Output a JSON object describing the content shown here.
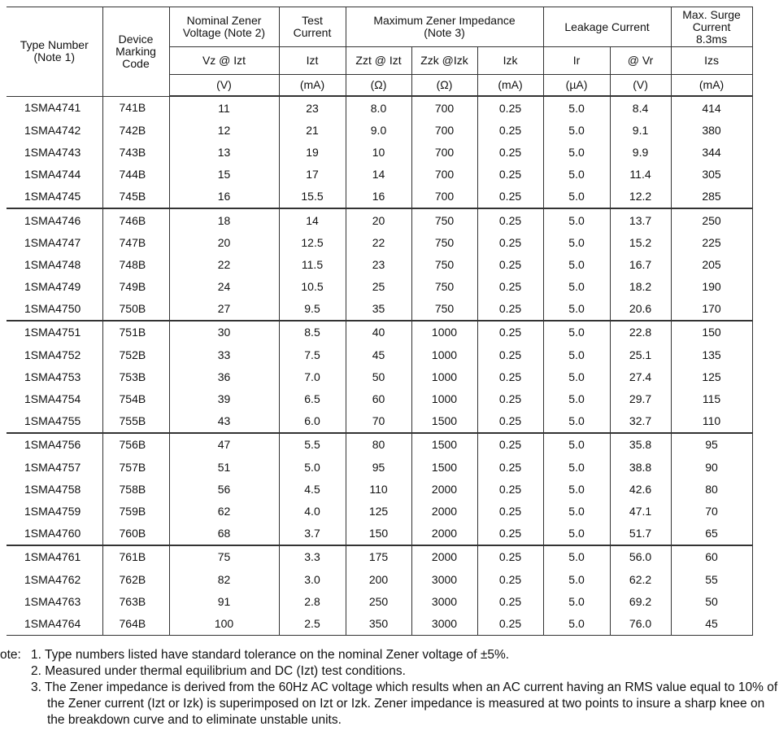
{
  "table": {
    "header": {
      "type_number": "Type Number\n(Note 1)",
      "marking_code": "Device\nMarking\nCode",
      "nominal_voltage": "Nominal Zener\nVoltage (Note 2)",
      "test_current": "Test\nCurrent",
      "max_impedance": "Maximum Zener Impedance\n(Note 3)",
      "leakage_current": "Leakage Current",
      "max_surge": "Max. Surge\nCurrent\n8.3ms",
      "symbols": [
        "Vz @ Izt",
        "Izt",
        "Zzt @ Izt",
        "Zzk @Izk",
        "Izk",
        "Ir",
        "@ Vr",
        "Izs"
      ],
      "units": [
        "(V)",
        "(mA)",
        "(Ω)",
        "(Ω)",
        "(mA)",
        "(µA)",
        "(V)",
        "(mA)"
      ]
    },
    "rows": [
      [
        "1SMA4741",
        "741B",
        "11",
        "23",
        "8.0",
        "700",
        "0.25",
        "5.0",
        "8.4",
        "414"
      ],
      [
        "1SMA4742",
        "742B",
        "12",
        "21",
        "9.0",
        "700",
        "0.25",
        "5.0",
        "9.1",
        "380"
      ],
      [
        "1SMA4743",
        "743B",
        "13",
        "19",
        "10",
        "700",
        "0.25",
        "5.0",
        "9.9",
        "344"
      ],
      [
        "1SMA4744",
        "744B",
        "15",
        "17",
        "14",
        "700",
        "0.25",
        "5.0",
        "11.4",
        "305"
      ],
      [
        "1SMA4745",
        "745B",
        "16",
        "15.5",
        "16",
        "700",
        "0.25",
        "5.0",
        "12.2",
        "285"
      ],
      [
        "1SMA4746",
        "746B",
        "18",
        "14",
        "20",
        "750",
        "0.25",
        "5.0",
        "13.7",
        "250"
      ],
      [
        "1SMA4747",
        "747B",
        "20",
        "12.5",
        "22",
        "750",
        "0.25",
        "5.0",
        "15.2",
        "225"
      ],
      [
        "1SMA4748",
        "748B",
        "22",
        "11.5",
        "23",
        "750",
        "0.25",
        "5.0",
        "16.7",
        "205"
      ],
      [
        "1SMA4749",
        "749B",
        "24",
        "10.5",
        "25",
        "750",
        "0.25",
        "5.0",
        "18.2",
        "190"
      ],
      [
        "1SMA4750",
        "750B",
        "27",
        "9.5",
        "35",
        "750",
        "0.25",
        "5.0",
        "20.6",
        "170"
      ],
      [
        "1SMA4751",
        "751B",
        "30",
        "8.5",
        "40",
        "1000",
        "0.25",
        "5.0",
        "22.8",
        "150"
      ],
      [
        "1SMA4752",
        "752B",
        "33",
        "7.5",
        "45",
        "1000",
        "0.25",
        "5.0",
        "25.1",
        "135"
      ],
      [
        "1SMA4753",
        "753B",
        "36",
        "7.0",
        "50",
        "1000",
        "0.25",
        "5.0",
        "27.4",
        "125"
      ],
      [
        "1SMA4754",
        "754B",
        "39",
        "6.5",
        "60",
        "1000",
        "0.25",
        "5.0",
        "29.7",
        "115"
      ],
      [
        "1SMA4755",
        "755B",
        "43",
        "6.0",
        "70",
        "1500",
        "0.25",
        "5.0",
        "32.7",
        "110"
      ],
      [
        "1SMA4756",
        "756B",
        "47",
        "5.5",
        "80",
        "1500",
        "0.25",
        "5.0",
        "35.8",
        "95"
      ],
      [
        "1SMA4757",
        "757B",
        "51",
        "5.0",
        "95",
        "1500",
        "0.25",
        "5.0",
        "38.8",
        "90"
      ],
      [
        "1SMA4758",
        "758B",
        "56",
        "4.5",
        "110",
        "2000",
        "0.25",
        "5.0",
        "42.6",
        "80"
      ],
      [
        "1SMA4759",
        "759B",
        "62",
        "4.0",
        "125",
        "2000",
        "0.25",
        "5.0",
        "47.1",
        "70"
      ],
      [
        "1SMA4760",
        "760B",
        "68",
        "3.7",
        "150",
        "2000",
        "0.25",
        "5.0",
        "51.7",
        "65"
      ],
      [
        "1SMA4761",
        "761B",
        "75",
        "3.3",
        "175",
        "2000",
        "0.25",
        "5.0",
        "56.0",
        "60"
      ],
      [
        "1SMA4762",
        "762B",
        "82",
        "3.0",
        "200",
        "3000",
        "0.25",
        "5.0",
        "62.2",
        "55"
      ],
      [
        "1SMA4763",
        "763B",
        "91",
        "2.8",
        "250",
        "3000",
        "0.25",
        "5.0",
        "69.2",
        "50"
      ],
      [
        "1SMA4764",
        "764B",
        "100",
        "2.5",
        "350",
        "3000",
        "0.25",
        "5.0",
        "76.0",
        "45"
      ]
    ]
  },
  "notes": {
    "label": "ote:",
    "items": [
      "1. Type numbers listed have standard tolerance on the nominal Zener voltage of ±5%.",
      "2. Measured under thermal equilibrium and DC (Izt) test conditions.",
      "3. The Zener impedance is derived from the 60Hz AC voltage which results when an AC current having an RMS value equal to 10% of the Zener current (Izt or Izk) is superimposed on Izt or Izk. Zener impedance is measured at two points to insure a sharp knee on the breakdown curve and to eliminate unstable units."
    ]
  }
}
